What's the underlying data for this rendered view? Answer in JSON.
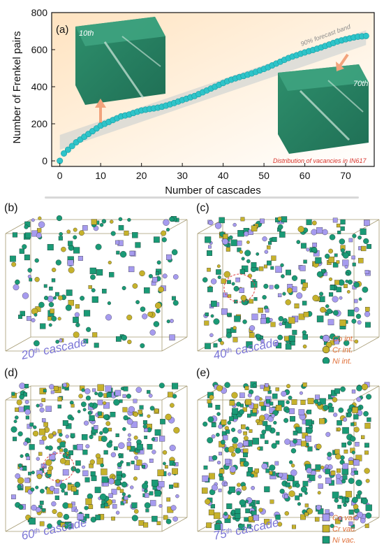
{
  "chart_data": {
    "type": "scatter",
    "panel_label": "(a)",
    "xlabel": "Number of cascades",
    "ylabel": "Number of Frenkel pairs",
    "xlim": [
      -2,
      77
    ],
    "ylim": [
      -30,
      800
    ],
    "xticks": [
      "0",
      "10",
      "20",
      "30",
      "40",
      "50",
      "60",
      "70"
    ],
    "xtick_values": [
      0,
      10,
      20,
      30,
      40,
      50,
      60,
      70
    ],
    "yticks": [
      "0",
      "200",
      "400",
      "600",
      "800"
    ],
    "ytick_values": [
      0,
      200,
      400,
      600,
      800
    ],
    "band_label": "90% forecast band",
    "band": {
      "x": [
        0,
        75
      ],
      "lower": [
        60,
        625
      ],
      "upper": [
        140,
        705
      ]
    },
    "x": [
      0,
      1,
      2,
      3,
      4,
      5,
      6,
      7,
      8,
      9,
      10,
      11,
      12,
      13,
      14,
      15,
      16,
      17,
      18,
      19,
      20,
      21,
      22,
      23,
      24,
      25,
      26,
      27,
      28,
      29,
      30,
      31,
      32,
      33,
      34,
      35,
      36,
      37,
      38,
      39,
      40,
      41,
      42,
      43,
      44,
      45,
      46,
      47,
      48,
      49,
      50,
      51,
      52,
      53,
      54,
      55,
      56,
      57,
      58,
      59,
      60,
      61,
      62,
      63,
      64,
      65,
      66,
      67,
      68,
      69,
      70,
      71,
      72,
      73,
      74,
      75
    ],
    "y": [
      0,
      40,
      60,
      80,
      100,
      115,
      130,
      145,
      160,
      175,
      190,
      200,
      210,
      220,
      230,
      240,
      245,
      250,
      258,
      265,
      272,
      276,
      280,
      283,
      287,
      292,
      298,
      305,
      312,
      320,
      328,
      335,
      343,
      350,
      360,
      370,
      380,
      390,
      400,
      410,
      420,
      430,
      438,
      445,
      452,
      458,
      465,
      472,
      480,
      488,
      496,
      505,
      515,
      525,
      535,
      545,
      555,
      563,
      570,
      578,
      585,
      592,
      598,
      605,
      612,
      620,
      628,
      636,
      644,
      650,
      656,
      661,
      666,
      670,
      672,
      674
    ],
    "inset_10": "10th",
    "inset_70": "70th",
    "inset_note": "Distribution of vacancies in IN617",
    "colors": {
      "points": "#2ec4c9",
      "band": "#b9c6cc",
      "arrow": "#f2a37c",
      "defect_green": "#1a9a76",
      "defect_olive": "#c6b22c",
      "defect_purple": "#a69bef"
    }
  },
  "panels": [
    {
      "letter": "(b)",
      "cascade": "20",
      "suffix": "th",
      "word": "cascade"
    },
    {
      "letter": "(c)",
      "cascade": "40",
      "suffix": "th",
      "word": "cascade"
    },
    {
      "letter": "(d)",
      "cascade": "60",
      "suffix": "th",
      "word": "cascade"
    },
    {
      "letter": "(e)",
      "cascade": "75",
      "suffix": "th",
      "word": "cascade"
    }
  ],
  "legend_int": [
    "Co int.",
    "Cr int.",
    "Ni int."
  ],
  "legend_vac": [
    "Co vac.",
    "Cr vac.",
    "Ni vac."
  ]
}
